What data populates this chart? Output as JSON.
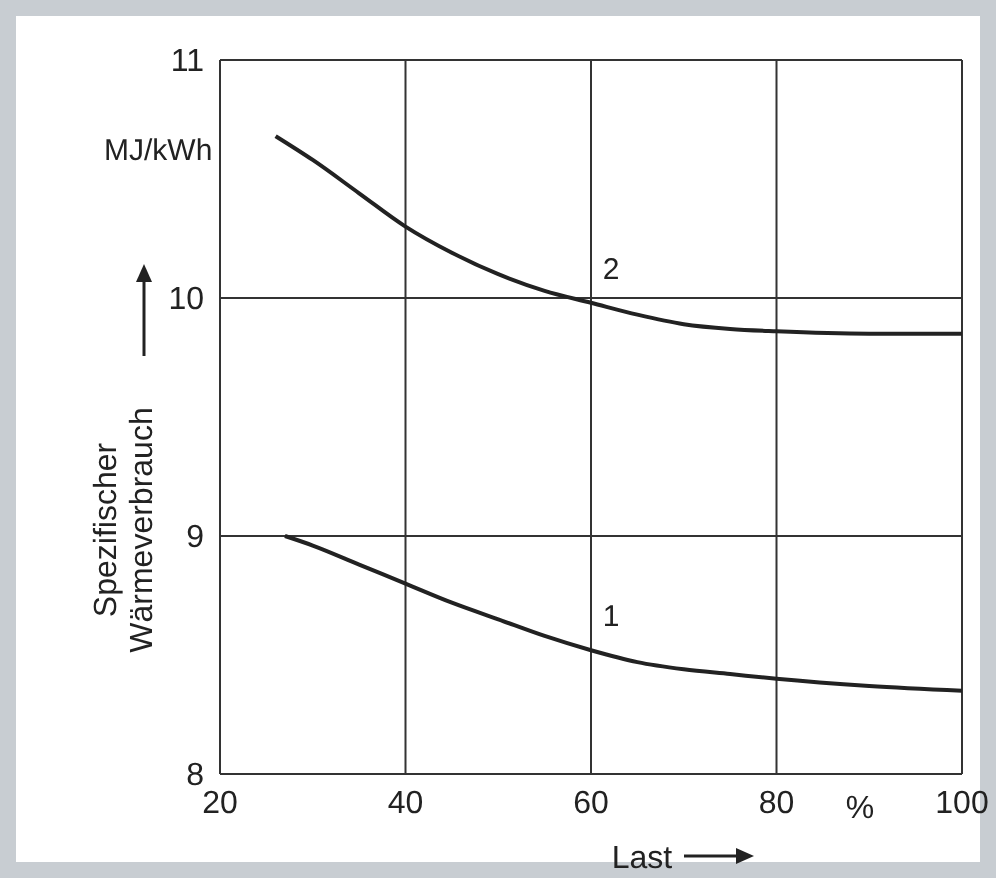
{
  "chart_data": {
    "type": "line",
    "xlabel": "Last",
    "ylabel": "Spezifischer Wärmeverbrauch",
    "annotations": [
      "MJ/kWh",
      "%"
    ],
    "xlim": [
      20,
      100
    ],
    "ylim": [
      8,
      11
    ],
    "xticks": [
      20,
      40,
      60,
      80,
      100
    ],
    "yticks": [
      8,
      9,
      10,
      11
    ],
    "grid": true,
    "series": [
      {
        "name": "2",
        "color": "#222222",
        "x": [
          26,
          30,
          35,
          40,
          45,
          50,
          55,
          60,
          65,
          70,
          75,
          80,
          90,
          100
        ],
        "values": [
          10.68,
          10.58,
          10.44,
          10.3,
          10.19,
          10.1,
          10.03,
          9.98,
          9.93,
          9.89,
          9.87,
          9.86,
          9.85,
          9.85
        ]
      },
      {
        "name": "1",
        "color": "#222222",
        "x": [
          27,
          30,
          35,
          40,
          45,
          50,
          55,
          60,
          65,
          70,
          75,
          80,
          90,
          100
        ],
        "values": [
          9.0,
          8.96,
          8.88,
          8.8,
          8.72,
          8.65,
          8.58,
          8.52,
          8.47,
          8.44,
          8.42,
          8.4,
          8.37,
          8.35
        ]
      }
    ]
  }
}
